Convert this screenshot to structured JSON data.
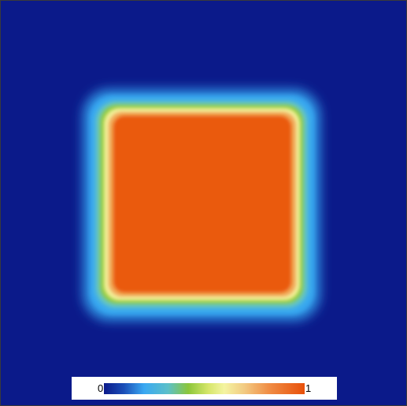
{
  "colorbar": {
    "min_label": "0",
    "max_label": "1",
    "colors": [
      "#0b1a8a",
      "#3a9ef0",
      "#8cc63a",
      "#f0f09a",
      "#f2b466",
      "#ea5a0a"
    ]
  },
  "field": {
    "background_color": "#0b1a8a",
    "interior_color": "#ea5a0a",
    "interior_value": 0.9,
    "background_value": 0
  }
}
